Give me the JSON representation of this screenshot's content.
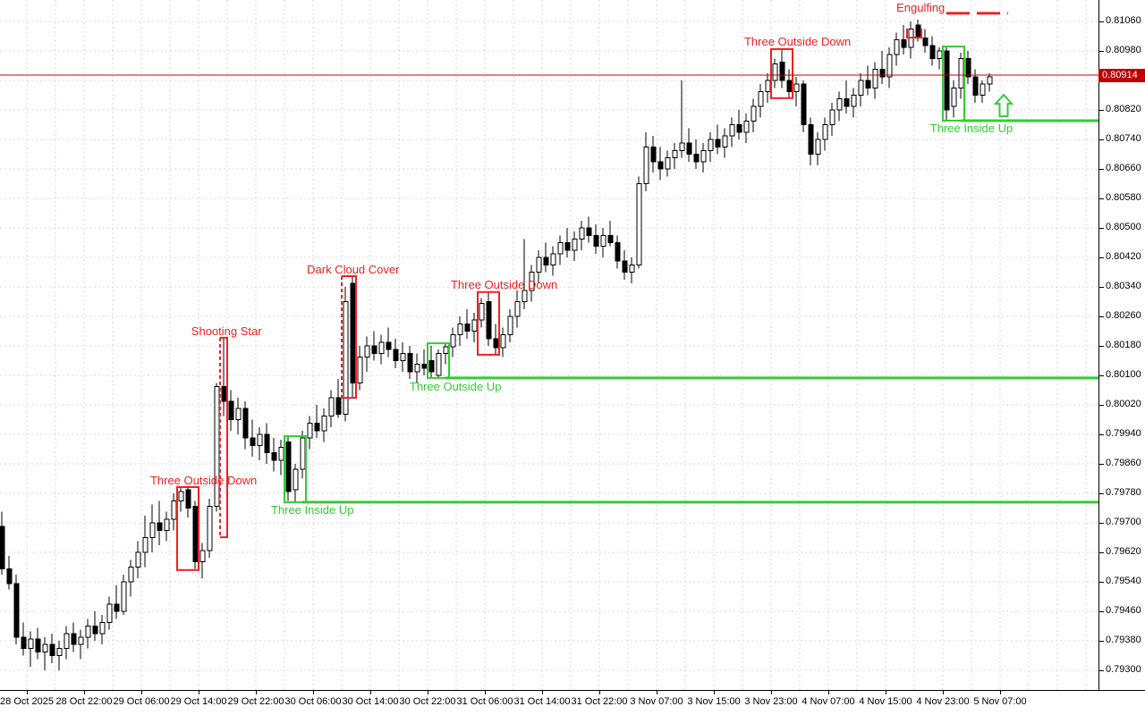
{
  "meta": {
    "app": "forex candlestick chart with pattern recognition markers",
    "background": "#FFFFFF",
    "colors": {
      "bearish_pattern": "#F02020",
      "bullish_pattern": "#32CD32",
      "current_price": "#C00000",
      "grid": "#D9D9D9",
      "candle_outline": "#000000",
      "candle_up_fill": "#FFFFFF",
      "candle_down_fill": "#000000",
      "axis_text": "#000000"
    }
  },
  "chart_data": {
    "type": "candlestick",
    "timeframe_hint": "H1",
    "current_price": 0.80914,
    "current_price_label": "0.80914",
    "y_axis": {
      "max_tick": 0.8106,
      "min_tick": 0.793,
      "tick_step": 0.0008,
      "tick_labels": [
        "0.81060",
        "0.80980",
        "0.80900",
        "0.80820",
        "0.80740",
        "0.80660",
        "0.80580",
        "0.80500",
        "0.80420",
        "0.80340",
        "0.80260",
        "0.80180",
        "0.80100",
        "0.80020",
        "0.79940",
        "0.79860",
        "0.79780",
        "0.79700",
        "0.79620",
        "0.79540",
        "0.79460",
        "0.79380",
        "0.79300"
      ]
    },
    "x_axis": {
      "labels": [
        "28 Oct 2025",
        "28 Oct 22:00",
        "29 Oct 06:00",
        "29 Oct 14:00",
        "29 Oct 22:00",
        "30 Oct 06:00",
        "30 Oct 14:00",
        "30 Oct 22:00",
        "31 Oct 06:00",
        "31 Oct 14:00",
        "31 Oct 22:00",
        "3 Nov 07:00",
        "3 Nov 15:00",
        "3 Nov 23:00",
        "4 Nov 07:00",
        "4 Nov 15:00",
        "4 Nov 23:00",
        "5 Nov 07:00"
      ],
      "bars_per_label": 8
    },
    "candles": [
      [
        0.7969,
        0.7973,
        0.7956,
        0.79575
      ],
      [
        0.79575,
        0.7961,
        0.7952,
        0.79535
      ],
      [
        0.79535,
        0.7956,
        0.7937,
        0.7939
      ],
      [
        0.7939,
        0.7943,
        0.7934,
        0.7936
      ],
      [
        0.7936,
        0.79405,
        0.7931,
        0.79385
      ],
      [
        0.79385,
        0.79415,
        0.7933,
        0.7935
      ],
      [
        0.7935,
        0.7939,
        0.793,
        0.7937
      ],
      [
        0.7937,
        0.794,
        0.7932,
        0.7934
      ],
      [
        0.7934,
        0.7938,
        0.793,
        0.7936
      ],
      [
        0.7936,
        0.7942,
        0.7933,
        0.794
      ],
      [
        0.794,
        0.7943,
        0.7935,
        0.7937
      ],
      [
        0.7937,
        0.7941,
        0.7933,
        0.7939
      ],
      [
        0.7939,
        0.7944,
        0.7936,
        0.7942
      ],
      [
        0.7942,
        0.7946,
        0.7938,
        0.794
      ],
      [
        0.794,
        0.7945,
        0.7937,
        0.7943
      ],
      [
        0.7943,
        0.795,
        0.7941,
        0.7948
      ],
      [
        0.7948,
        0.7953,
        0.7944,
        0.7946
      ],
      [
        0.7946,
        0.7956,
        0.7945,
        0.7954
      ],
      [
        0.7954,
        0.796,
        0.795,
        0.7958
      ],
      [
        0.7958,
        0.7965,
        0.7955,
        0.7962
      ],
      [
        0.7962,
        0.7972,
        0.7958,
        0.7966
      ],
      [
        0.7966,
        0.7975,
        0.7962,
        0.797
      ],
      [
        0.797,
        0.7976,
        0.7964,
        0.7968
      ],
      [
        0.7968,
        0.7973,
        0.7965,
        0.7971
      ],
      [
        0.7971,
        0.7978,
        0.7968,
        0.7976
      ],
      [
        0.7976,
        0.798,
        0.7973,
        0.79785
      ],
      [
        0.7979,
        0.798,
        0.79715,
        0.7974
      ],
      [
        0.79745,
        0.7976,
        0.79575,
        0.79595
      ],
      [
        0.79595,
        0.79645,
        0.7955,
        0.79625
      ],
      [
        0.79625,
        0.79765,
        0.79605,
        0.79745
      ],
      [
        0.79745,
        0.8008,
        0.7973,
        0.8007
      ],
      [
        0.8007,
        0.802,
        0.7999,
        0.8003
      ],
      [
        0.8003,
        0.8006,
        0.7995,
        0.7998
      ],
      [
        0.7998,
        0.8004,
        0.7994,
        0.8001
      ],
      [
        0.8001,
        0.8003,
        0.799,
        0.7993
      ],
      [
        0.7993,
        0.7998,
        0.7988,
        0.7991
      ],
      [
        0.7991,
        0.7996,
        0.7987,
        0.7994
      ],
      [
        0.7994,
        0.7997,
        0.7986,
        0.7989
      ],
      [
        0.7989,
        0.7993,
        0.7984,
        0.7987
      ],
      [
        0.7987,
        0.79925,
        0.7983,
        0.79905
      ],
      [
        0.7992,
        0.79935,
        0.7976,
        0.79785
      ],
      [
        0.7979,
        0.7986,
        0.79758,
        0.79845
      ],
      [
        0.79845,
        0.7995,
        0.7982,
        0.7993
      ],
      [
        0.7993,
        0.7999,
        0.799,
        0.7997
      ],
      [
        0.7997,
        0.8002,
        0.7993,
        0.7995
      ],
      [
        0.7995,
        0.8001,
        0.7992,
        0.7999
      ],
      [
        0.7999,
        0.8006,
        0.7996,
        0.8004
      ],
      [
        0.8004,
        0.8009,
        0.79985,
        0.79995
      ],
      [
        0.79995,
        0.8034,
        0.79975,
        0.803
      ],
      [
        0.8035,
        0.80368,
        0.8004,
        0.8008
      ],
      [
        0.8008,
        0.8018,
        0.8006,
        0.8015
      ],
      [
        0.8015,
        0.80205,
        0.8011,
        0.8018
      ],
      [
        0.8018,
        0.8022,
        0.8014,
        0.8016
      ],
      [
        0.8016,
        0.8021,
        0.8013,
        0.8019
      ],
      [
        0.8019,
        0.8023,
        0.8015,
        0.8017
      ],
      [
        0.8017,
        0.802,
        0.8012,
        0.8014
      ],
      [
        0.8014,
        0.8019,
        0.8011,
        0.8016
      ],
      [
        0.8016,
        0.8018,
        0.8009,
        0.8011
      ],
      [
        0.8011,
        0.8016,
        0.8008,
        0.8013
      ],
      [
        0.8013,
        0.8017,
        0.801,
        0.8012
      ],
      [
        0.8014,
        0.8018,
        0.80095,
        0.8011
      ],
      [
        0.801,
        0.8017,
        0.80094,
        0.8016
      ],
      [
        0.8016,
        0.80186,
        0.8013,
        0.80178
      ],
      [
        0.80178,
        0.8023,
        0.8015,
        0.8021
      ],
      [
        0.8021,
        0.8026,
        0.8018,
        0.8024
      ],
      [
        0.8024,
        0.8028,
        0.802,
        0.8022
      ],
      [
        0.8022,
        0.8027,
        0.8019,
        0.8025
      ],
      [
        0.8025,
        0.8031,
        0.8023,
        0.80295
      ],
      [
        0.803,
        0.80325,
        0.8018,
        0.802
      ],
      [
        0.802,
        0.8024,
        0.80157,
        0.80175
      ],
      [
        0.80175,
        0.8023,
        0.8015,
        0.8021
      ],
      [
        0.8021,
        0.8028,
        0.8019,
        0.8026
      ],
      [
        0.8026,
        0.8033,
        0.8023,
        0.803
      ],
      [
        0.803,
        0.8047,
        0.8028,
        0.8033
      ],
      [
        0.8033,
        0.804,
        0.803,
        0.8038
      ],
      [
        0.8038,
        0.8044,
        0.8035,
        0.8042
      ],
      [
        0.8042,
        0.8046,
        0.8038,
        0.804
      ],
      [
        0.804,
        0.8045,
        0.8037,
        0.8043
      ],
      [
        0.8043,
        0.8048,
        0.804,
        0.8046
      ],
      [
        0.8046,
        0.805,
        0.8042,
        0.8044
      ],
      [
        0.8044,
        0.8049,
        0.8041,
        0.8047
      ],
      [
        0.8047,
        0.8052,
        0.8044,
        0.805
      ],
      [
        0.805,
        0.8053,
        0.8046,
        0.8048
      ],
      [
        0.8048,
        0.8051,
        0.8043,
        0.8045
      ],
      [
        0.8045,
        0.805,
        0.8042,
        0.8048
      ],
      [
        0.8048,
        0.8052,
        0.8045,
        0.8046
      ],
      [
        0.8046,
        0.8048,
        0.8039,
        0.8041
      ],
      [
        0.8041,
        0.8044,
        0.8036,
        0.8038
      ],
      [
        0.8038,
        0.8042,
        0.8035,
        0.804
      ],
      [
        0.804,
        0.8064,
        0.8039,
        0.8062
      ],
      [
        0.8062,
        0.8076,
        0.806,
        0.8072
      ],
      [
        0.8072,
        0.8075,
        0.8065,
        0.8068
      ],
      [
        0.8068,
        0.8072,
        0.8063,
        0.8066
      ],
      [
        0.8066,
        0.8071,
        0.8064,
        0.8069
      ],
      [
        0.8069,
        0.8073,
        0.8066,
        0.8071
      ],
      [
        0.8071,
        0.809,
        0.8069,
        0.8073
      ],
      [
        0.8073,
        0.8077,
        0.8068,
        0.807
      ],
      [
        0.807,
        0.8074,
        0.8066,
        0.8068
      ],
      [
        0.8068,
        0.8073,
        0.8065,
        0.8071
      ],
      [
        0.8071,
        0.8076,
        0.8068,
        0.8074
      ],
      [
        0.8074,
        0.8078,
        0.807,
        0.8072
      ],
      [
        0.8072,
        0.8077,
        0.8069,
        0.8075
      ],
      [
        0.8075,
        0.808,
        0.8072,
        0.8078
      ],
      [
        0.8078,
        0.8082,
        0.8074,
        0.8076
      ],
      [
        0.8076,
        0.8081,
        0.8073,
        0.8079
      ],
      [
        0.8079,
        0.8085,
        0.8076,
        0.8083
      ],
      [
        0.8083,
        0.8089,
        0.808,
        0.8087
      ],
      [
        0.8087,
        0.8092,
        0.8084,
        0.809
      ],
      [
        0.809,
        0.8096,
        0.8088,
        0.80945
      ],
      [
        0.8095,
        0.80984,
        0.8088,
        0.809
      ],
      [
        0.809,
        0.8093,
        0.80853,
        0.8087
      ],
      [
        0.8087,
        0.8091,
        0.8083,
        0.8089
      ],
      [
        0.8089,
        0.809,
        0.8076,
        0.8078
      ],
      [
        0.8078,
        0.808,
        0.8067,
        0.807
      ],
      [
        0.807,
        0.8076,
        0.8067,
        0.8074
      ],
      [
        0.8074,
        0.808,
        0.8071,
        0.8078
      ],
      [
        0.8078,
        0.8084,
        0.8075,
        0.8082
      ],
      [
        0.8082,
        0.8087,
        0.8079,
        0.8085
      ],
      [
        0.8085,
        0.809,
        0.8081,
        0.8083
      ],
      [
        0.8083,
        0.8088,
        0.808,
        0.8086
      ],
      [
        0.8086,
        0.8092,
        0.8083,
        0.809
      ],
      [
        0.809,
        0.8094,
        0.8086,
        0.8088
      ],
      [
        0.8088,
        0.8095,
        0.8085,
        0.8093
      ],
      [
        0.8093,
        0.8098,
        0.8089,
        0.8091
      ],
      [
        0.8091,
        0.8099,
        0.8088,
        0.8097
      ],
      [
        0.8097,
        0.8103,
        0.8094,
        0.8101
      ],
      [
        0.8101,
        0.8105,
        0.8097,
        0.8099
      ],
      [
        0.8099,
        0.8106,
        0.8096,
        0.8104
      ],
      [
        0.8105,
        0.81065,
        0.81005,
        0.81015
      ],
      [
        0.81015,
        0.8104,
        0.80975,
        0.80995
      ],
      [
        0.80995,
        0.8102,
        0.8094,
        0.8096
      ],
      [
        0.8096,
        0.8099,
        0.8093,
        0.8098
      ],
      [
        0.8098,
        0.80992,
        0.8079,
        0.8082
      ],
      [
        0.8083,
        0.809,
        0.808,
        0.8088
      ],
      [
        0.8088,
        0.80975,
        0.8085,
        0.8096
      ],
      [
        0.8096,
        0.8098,
        0.8089,
        0.8091
      ],
      [
        0.8091,
        0.8093,
        0.8084,
        0.8086
      ],
      [
        0.8086,
        0.809,
        0.8084,
        0.8089
      ],
      [
        0.8089,
        0.8092,
        0.8087,
        0.8091
      ]
    ],
    "patterns": [
      {
        "name": "Three Outside Down",
        "color": "bearish",
        "shape": "box",
        "bar_from": 25,
        "bar_to": 27,
        "price_top": 0.79797,
        "price_bottom": 0.79572,
        "label_bar": 28.2,
        "label_price": 0.79816
      },
      {
        "name": "Shooting Star",
        "color": "bearish",
        "shape": "box",
        "left_dashed": true,
        "bar_from": 31,
        "bar_to": 31,
        "price_top": 0.80202,
        "price_bottom": 0.79661,
        "label_bar": 31.4,
        "label_price": 0.80221
      },
      {
        "name": "Dark Cloud Cover",
        "color": "bearish",
        "shape": "box",
        "left_dashed": true,
        "bar_from": 48,
        "bar_to": 49,
        "price_top": 0.80369,
        "price_bottom": 0.80039,
        "label_bar": 49.1,
        "label_price": 0.80388
      },
      {
        "name": "Three Inside Up",
        "color": "bullish",
        "shape": "box",
        "ray": true,
        "bar_from": 40,
        "bar_to": 42,
        "price_top": 0.79935,
        "price_bottom": 0.79756,
        "label_bar": 43.4,
        "label_price": 0.79736
      },
      {
        "name": "Three Outside Up",
        "color": "bullish",
        "shape": "box",
        "ray": true,
        "bar_from": 60,
        "bar_to": 62,
        "price_top": 0.80187,
        "price_bottom": 0.80093,
        "label_bar": 63.4,
        "label_price": 0.80071
      },
      {
        "name": "Three Outside Down",
        "color": "bearish",
        "shape": "box",
        "bar_from": 67,
        "bar_to": 69,
        "price_top": 0.80326,
        "price_bottom": 0.80156,
        "label_bar": 70.2,
        "label_price": 0.80347
      },
      {
        "name": "Three Outside Down",
        "color": "bearish",
        "shape": "box",
        "bar_from": 108,
        "bar_to": 110,
        "price_top": 0.80985,
        "price_bottom": 0.80852,
        "label_bar": 111.2,
        "label_price": 0.81007
      },
      {
        "name": "Engulfing",
        "color": "bearish",
        "shape": "bracket",
        "bar_from": 127,
        "bar_to": 128,
        "price_top": 0.81041,
        "price_bottom": 0.81016,
        "label_bar": 128.4,
        "label_price": 0.81099,
        "signal_line": {
          "price": 0.81082,
          "bar_from": 132,
          "bar_to": 140.6,
          "width": 3,
          "dashed": true
        }
      },
      {
        "name": "Three Inside Up",
        "color": "bullish",
        "shape": "box",
        "ray": true,
        "bar_from": 132,
        "bar_to": 134,
        "price_top": 0.80992,
        "price_bottom": 0.80791,
        "label_bar": 135.5,
        "label_price": 0.80772,
        "arrow": {
          "bar": 140,
          "price_top": 0.80861
        }
      }
    ]
  }
}
